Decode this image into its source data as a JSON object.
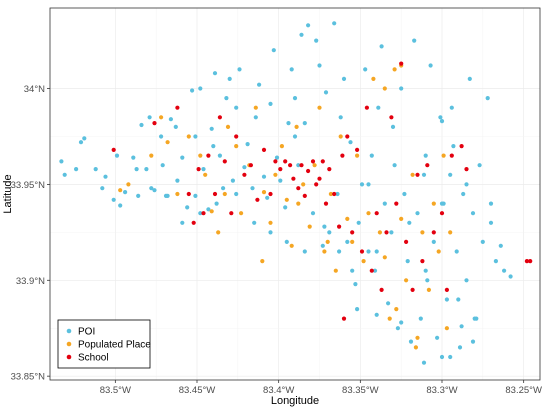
{
  "chart_data": {
    "type": "scatter",
    "title": "",
    "xlabel": "Longitude",
    "ylabel": "Latitude",
    "xlim": [
      -83.54,
      -83.24
    ],
    "ylim": [
      33.848,
      34.042
    ],
    "x_ticks": [
      {
        "value": -83.5,
        "label": "83.5°W"
      },
      {
        "value": -83.45,
        "label": "83.45°W"
      },
      {
        "value": -83.4,
        "label": "83.4°W"
      },
      {
        "value": -83.35,
        "label": "83.35°W"
      },
      {
        "value": -83.3,
        "label": "83.3°W"
      },
      {
        "value": -83.25,
        "label": "83.25°W"
      }
    ],
    "y_ticks": [
      {
        "value": 33.85,
        "label": "33.85°N"
      },
      {
        "value": 33.9,
        "label": "33.9°N"
      },
      {
        "value": 33.95,
        "label": "33.95°N"
      },
      {
        "value": 34.0,
        "label": "34°N"
      }
    ],
    "grid": true,
    "legend": "bottom-left",
    "series": [
      {
        "name": "POI",
        "color": "#5bc0de",
        "points": [
          [
            -83.533,
            33.962
          ],
          [
            -83.531,
            33.955
          ],
          [
            -83.524,
            33.958
          ],
          [
            -83.521,
            33.972
          ],
          [
            -83.519,
            33.974
          ],
          [
            -83.512,
            33.958
          ],
          [
            -83.508,
            33.948
          ],
          [
            -83.506,
            33.954
          ],
          [
            -83.501,
            33.942
          ],
          [
            -83.499,
            33.965
          ],
          [
            -83.497,
            33.939
          ],
          [
            -83.494,
            33.946
          ],
          [
            -83.489,
            33.964
          ],
          [
            -83.486,
            33.944
          ],
          [
            -83.484,
            33.981
          ],
          [
            -83.481,
            33.958
          ],
          [
            -83.479,
            33.985
          ],
          [
            -83.476,
            33.947
          ],
          [
            -83.472,
            33.975
          ],
          [
            -83.471,
            33.96
          ],
          [
            -83.468,
            33.944
          ],
          [
            -83.466,
            33.984
          ],
          [
            -83.462,
            33.952
          ],
          [
            -83.459,
            33.964
          ],
          [
            -83.456,
            33.938
          ],
          [
            -83.453,
            33.999
          ],
          [
            -83.451,
            33.944
          ],
          [
            -83.448,
            34.0
          ],
          [
            -83.446,
            33.958
          ],
          [
            -83.443,
            33.937
          ],
          [
            -83.441,
            33.979
          ],
          [
            -83.439,
            34.008
          ],
          [
            -83.436,
            33.965
          ],
          [
            -83.434,
            33.948
          ],
          [
            -83.432,
            33.995
          ],
          [
            -83.43,
            34.005
          ],
          [
            -83.428,
            33.952
          ],
          [
            -83.426,
            33.99
          ],
          [
            -83.424,
            34.01
          ],
          [
            -83.421,
            33.959
          ],
          [
            -83.419,
            33.971
          ],
          [
            -83.416,
            33.948
          ],
          [
            -83.414,
            33.985
          ],
          [
            -83.412,
            34.002
          ],
          [
            -83.409,
            33.954
          ],
          [
            -83.407,
            33.943
          ],
          [
            -83.405,
            33.992
          ],
          [
            -83.403,
            34.02
          ],
          [
            -83.401,
            33.964
          ],
          [
            -83.399,
            33.952
          ],
          [
            -83.396,
            33.938
          ],
          [
            -83.394,
            33.982
          ],
          [
            -83.392,
            34.01
          ],
          [
            -83.39,
            33.995
          ],
          [
            -83.388,
            33.96
          ],
          [
            -83.386,
            34.028
          ],
          [
            -83.384,
            33.982
          ],
          [
            -83.382,
            34.033
          ],
          [
            -83.379,
            33.935
          ],
          [
            -83.377,
            34.025
          ],
          [
            -83.375,
            34.012
          ],
          [
            -83.373,
            33.918
          ],
          [
            -83.371,
            33.998
          ],
          [
            -83.369,
            33.925
          ],
          [
            -83.366,
            34.034
          ],
          [
            -83.364,
            33.945
          ],
          [
            -83.362,
            33.985
          ],
          [
            -83.36,
            34.005
          ],
          [
            -83.358,
            33.92
          ],
          [
            -83.356,
            33.972
          ],
          [
            -83.353,
            33.898
          ],
          [
            -83.351,
            33.93
          ],
          [
            -83.349,
            33.95
          ],
          [
            -83.347,
            34.01
          ],
          [
            -83.345,
            33.915
          ],
          [
            -83.343,
            33.965
          ],
          [
            -83.341,
            33.905
          ],
          [
            -83.339,
            33.99
          ],
          [
            -83.337,
            34.022
          ],
          [
            -83.335,
            33.94
          ],
          [
            -83.333,
            33.888
          ],
          [
            -83.331,
            33.925
          ],
          [
            -83.329,
            33.96
          ],
          [
            -83.327,
            33.875
          ],
          [
            -83.325,
            34.0
          ],
          [
            -83.323,
            33.945
          ],
          [
            -83.321,
            33.91
          ],
          [
            -83.319,
            33.868
          ],
          [
            -83.317,
            34.025
          ],
          [
            -83.315,
            33.935
          ],
          [
            -83.313,
            33.88
          ],
          [
            -83.311,
            33.955
          ],
          [
            -83.309,
            33.9
          ],
          [
            -83.307,
            34.012
          ],
          [
            -83.305,
            33.92
          ],
          [
            -83.303,
            33.87
          ],
          [
            -83.301,
            33.985
          ],
          [
            -83.299,
            33.94
          ],
          [
            -83.297,
            33.89
          ],
          [
            -83.295,
            33.86
          ],
          [
            -83.293,
            33.97
          ],
          [
            -83.291,
            33.915
          ],
          [
            -83.289,
            33.865
          ],
          [
            -83.287,
            33.945
          ],
          [
            -83.285,
            33.9
          ],
          [
            -83.283,
            34.005
          ],
          [
            -83.281,
            33.935
          ],
          [
            -83.279,
            33.88
          ],
          [
            -83.277,
            33.96
          ],
          [
            -83.275,
            33.92
          ],
          [
            -83.272,
            33.995
          ],
          [
            -83.27,
            33.93
          ],
          [
            -83.267,
            33.91
          ],
          [
            -83.264,
            33.918
          ],
          [
            -83.262,
            33.905
          ],
          [
            -83.258,
            33.902
          ],
          [
            -83.281,
            33.868
          ],
          [
            -83.288,
            33.876
          ],
          [
            -83.3,
            33.86
          ],
          [
            -83.311,
            33.857
          ],
          [
            -83.325,
            33.878
          ],
          [
            -83.34,
            33.882
          ],
          [
            -83.352,
            33.885
          ],
          [
            -83.363,
            33.915
          ],
          [
            -83.372,
            33.928
          ],
          [
            -83.384,
            33.915
          ],
          [
            -83.395,
            33.92
          ],
          [
            -83.405,
            33.925
          ],
          [
            -83.415,
            33.93
          ],
          [
            -83.426,
            33.945
          ],
          [
            -83.438,
            33.94
          ],
          [
            -83.448,
            33.935
          ],
          [
            -83.459,
            33.93
          ],
          [
            -83.469,
            33.944
          ],
          [
            -83.478,
            33.948
          ],
          [
            -83.487,
            33.958
          ],
          [
            -83.463,
            33.98
          ],
          [
            -83.451,
            33.975
          ],
          [
            -83.44,
            33.97
          ],
          [
            -83.39,
            33.975
          ],
          [
            -83.345,
            33.95
          ],
          [
            -83.33,
            33.98
          ],
          [
            -83.31,
            33.965
          ],
          [
            -83.295,
            33.955
          ],
          [
            -83.285,
            33.95
          ],
          [
            -83.3,
            33.94
          ],
          [
            -83.32,
            33.93
          ],
          [
            -83.34,
            33.915
          ],
          [
            -83.355,
            33.905
          ],
          [
            -83.31,
            33.905
          ],
          [
            -83.29,
            33.89
          ],
          [
            -83.28,
            33.88
          ],
          [
            -83.27,
            33.94
          ],
          [
            -83.3,
            33.983
          ],
          [
            -83.294,
            33.99
          ]
        ]
      },
      {
        "name": "Populated Place",
        "color": "#f5a623",
        "points": [
          [
            -83.497,
            33.947
          ],
          [
            -83.492,
            33.95
          ],
          [
            -83.478,
            33.965
          ],
          [
            -83.472,
            33.985
          ],
          [
            -83.468,
            33.972
          ],
          [
            -83.462,
            33.945
          ],
          [
            -83.455,
            33.975
          ],
          [
            -83.448,
            33.965
          ],
          [
            -83.445,
            33.955
          ],
          [
            -83.441,
            33.936
          ],
          [
            -83.437,
            33.925
          ],
          [
            -83.433,
            33.945
          ],
          [
            -83.431,
            33.98
          ],
          [
            -83.426,
            33.97
          ],
          [
            -83.423,
            33.935
          ],
          [
            -83.418,
            33.96
          ],
          [
            -83.414,
            33.99
          ],
          [
            -83.409,
            33.946
          ],
          [
            -83.405,
            33.93
          ],
          [
            -83.402,
            33.955
          ],
          [
            -83.398,
            33.97
          ],
          [
            -83.395,
            33.942
          ],
          [
            -83.392,
            33.918
          ],
          [
            -83.389,
            33.98
          ],
          [
            -83.385,
            33.95
          ],
          [
            -83.381,
            33.928
          ],
          [
            -83.378,
            33.96
          ],
          [
            -83.375,
            33.99
          ],
          [
            -83.372,
            33.915
          ],
          [
            -83.368,
            33.945
          ],
          [
            -83.365,
            33.905
          ],
          [
            -83.362,
            33.975
          ],
          [
            -83.358,
            33.932
          ],
          [
            -83.355,
            33.92
          ],
          [
            -83.352,
            33.965
          ],
          [
            -83.348,
            33.91
          ],
          [
            -83.345,
            33.935
          ],
          [
            -83.342,
            34.005
          ],
          [
            -83.338,
            33.925
          ],
          [
            -83.335,
            33.912
          ],
          [
            -83.332,
            33.88
          ],
          [
            -83.329,
            34.01
          ],
          [
            -83.325,
            33.932
          ],
          [
            -83.322,
            33.9
          ],
          [
            -83.318,
            33.955
          ],
          [
            -83.315,
            33.87
          ],
          [
            -83.312,
            33.925
          ],
          [
            -83.308,
            33.895
          ],
          [
            -83.305,
            33.94
          ],
          [
            -83.302,
            33.915
          ],
          [
            -83.299,
            33.965
          ],
          [
            -83.295,
            33.925
          ],
          [
            -83.316,
            33.865
          ],
          [
            -83.328,
            33.885
          ],
          [
            -83.41,
            33.91
          ],
          [
            -83.388,
            33.94
          ],
          [
            -83.37,
            33.92
          ],
          [
            -83.325,
            34.012
          ],
          [
            -83.335,
            34.0
          ],
          [
            -83.297,
            33.875
          ]
        ]
      },
      {
        "name": "School",
        "color": "#e3000f",
        "points": [
          [
            -83.501,
            33.968
          ],
          [
            -83.476,
            33.982
          ],
          [
            -83.462,
            33.99
          ],
          [
            -83.455,
            33.945
          ],
          [
            -83.452,
            33.93
          ],
          [
            -83.449,
            33.958
          ],
          [
            -83.446,
            33.935
          ],
          [
            -83.443,
            33.965
          ],
          [
            -83.439,
            33.945
          ],
          [
            -83.436,
            33.985
          ],
          [
            -83.433,
            33.962
          ],
          [
            -83.429,
            33.935
          ],
          [
            -83.426,
            33.975
          ],
          [
            -83.421,
            33.955
          ],
          [
            -83.417,
            33.96
          ],
          [
            -83.413,
            33.942
          ],
          [
            -83.409,
            33.968
          ],
          [
            -83.405,
            33.945
          ],
          [
            -83.402,
            33.962
          ],
          [
            -83.399,
            33.958
          ],
          [
            -83.396,
            33.962
          ],
          [
            -83.393,
            33.96
          ],
          [
            -83.391,
            33.953
          ],
          [
            -83.388,
            33.948
          ],
          [
            -83.386,
            33.96
          ],
          [
            -83.384,
            33.944
          ],
          [
            -83.382,
            33.957
          ],
          [
            -83.379,
            33.962
          ],
          [
            -83.377,
            33.95
          ],
          [
            -83.375,
            33.953
          ],
          [
            -83.373,
            33.962
          ],
          [
            -83.371,
            33.94
          ],
          [
            -83.369,
            33.958
          ],
          [
            -83.366,
            33.945
          ],
          [
            -83.363,
            33.928
          ],
          [
            -83.361,
            33.965
          ],
          [
            -83.358,
            33.975
          ],
          [
            -83.355,
            33.925
          ],
          [
            -83.352,
            33.968
          ],
          [
            -83.349,
            33.915
          ],
          [
            -83.346,
            33.99
          ],
          [
            -83.343,
            33.905
          ],
          [
            -83.34,
            33.935
          ],
          [
            -83.337,
            33.895
          ],
          [
            -83.334,
            33.925
          ],
          [
            -83.331,
            33.985
          ],
          [
            -83.328,
            33.94
          ],
          [
            -83.325,
            34.013
          ],
          [
            -83.322,
            33.92
          ],
          [
            -83.318,
            33.895
          ],
          [
            -83.315,
            33.955
          ],
          [
            -83.312,
            33.91
          ],
          [
            -83.309,
            33.96
          ],
          [
            -83.305,
            33.925
          ],
          [
            -83.3,
            33.935
          ],
          [
            -83.297,
            33.895
          ],
          [
            -83.294,
            33.965
          ],
          [
            -83.288,
            33.97
          ],
          [
            -83.285,
            33.958
          ],
          [
            -83.248,
            33.91
          ],
          [
            -83.246,
            33.91
          ],
          [
            -83.36,
            33.88
          ]
        ]
      }
    ]
  }
}
